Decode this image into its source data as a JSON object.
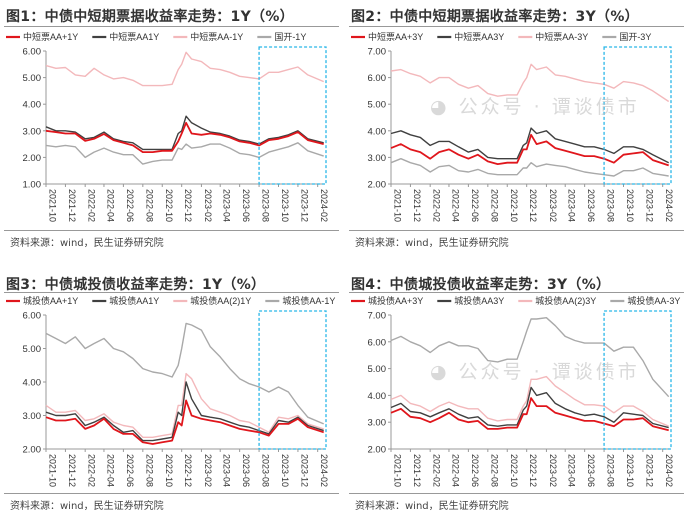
{
  "watermark": "公众号 · 谭谈债市",
  "colors": {
    "red": "#e0161c",
    "dark": "#404040",
    "pink": "#f3b8bb",
    "gray": "#a9a9a9",
    "highlight": "#29b6e8"
  },
  "x_dates": [
    "2021-10-01",
    "2021-11-01",
    "2021-12-01",
    "2022-01-01",
    "2022-02-01",
    "2022-03-01",
    "2022-04-01",
    "2022-05-01",
    "2022-06-01",
    "2022-07-01",
    "2022-08-01",
    "2022-09-01",
    "2022-10-01",
    "2022-11-01",
    "2022-11-20",
    "2022-12-01",
    "2022-12-15",
    "2023-01-01",
    "2023-02-01",
    "2023-03-01",
    "2023-04-01",
    "2023-05-01",
    "2023-06-01",
    "2023-07-01",
    "2023-08-01",
    "2023-09-01",
    "2023-10-01",
    "2023-11-01",
    "2023-12-01",
    "2024-01-01",
    "2024-02-20"
  ],
  "chart_data": [
    {
      "type": "line",
      "title": "图1：中债中短期票据收益率走势：1Y（%）",
      "source": "资料来源：wind，民生证券研究院",
      "ylim": [
        1,
        6
      ],
      "yticks": [
        "1.00",
        "2.00",
        "3.00",
        "4.00",
        "5.00",
        "6.00"
      ],
      "xticks": [
        "2021-10",
        "2021-12",
        "2022-02",
        "2022-04",
        "2022-06",
        "2022-08",
        "2022-10",
        "2022-12",
        "2023-02",
        "2023-04",
        "2023-06",
        "2023-08",
        "2023-10",
        "2023-12",
        "2024-02"
      ],
      "highlight_from": "2023-08",
      "grid": false,
      "legend": "top",
      "series": [
        {
          "name": "中短票AA+1Y",
          "color": "red",
          "values": [
            3.0,
            2.95,
            2.9,
            2.9,
            2.62,
            2.7,
            2.88,
            2.65,
            2.55,
            2.45,
            2.2,
            2.2,
            2.25,
            2.25,
            2.6,
            2.9,
            3.3,
            2.9,
            2.85,
            2.9,
            2.85,
            2.75,
            2.6,
            2.55,
            2.45,
            2.65,
            2.7,
            2.8,
            2.95,
            2.65,
            2.5
          ]
        },
        {
          "name": "中短票AA1Y",
          "color": "dark",
          "values": [
            3.15,
            3.0,
            3.0,
            2.95,
            2.7,
            2.75,
            2.95,
            2.7,
            2.6,
            2.55,
            2.3,
            2.3,
            2.3,
            2.3,
            2.9,
            3.0,
            3.55,
            3.3,
            3.1,
            2.95,
            2.9,
            2.8,
            2.65,
            2.6,
            2.5,
            2.7,
            2.75,
            2.85,
            3.0,
            2.7,
            2.55
          ]
        },
        {
          "name": "中短票AA-1Y",
          "color": "pink",
          "values": [
            5.45,
            5.35,
            5.38,
            5.1,
            5.05,
            5.35,
            5.1,
            4.95,
            5.0,
            4.9,
            4.7,
            4.7,
            4.7,
            4.75,
            5.3,
            5.5,
            5.95,
            5.7,
            5.6,
            5.35,
            5.3,
            5.2,
            5.05,
            5.0,
            4.95,
            5.2,
            5.2,
            5.3,
            5.4,
            5.1,
            4.85
          ]
        },
        {
          "name": "国开-1Y",
          "color": "gray",
          "values": [
            2.45,
            2.4,
            2.45,
            2.4,
            2.0,
            2.2,
            2.35,
            2.2,
            2.1,
            2.1,
            1.75,
            1.85,
            1.9,
            1.9,
            2.35,
            2.3,
            2.5,
            2.35,
            2.4,
            2.5,
            2.5,
            2.35,
            2.15,
            2.1,
            2.0,
            2.2,
            2.3,
            2.4,
            2.55,
            2.25,
            2.05
          ]
        }
      ]
    },
    {
      "type": "line",
      "title": "图2：中债中短期票据收益率走势：3Y（%）",
      "source": "资料来源：wind，民生证券研究院",
      "ylim": [
        2,
        7
      ],
      "yticks": [
        "2.00",
        "3.00",
        "4.00",
        "5.00",
        "6.00",
        "7.00"
      ],
      "xticks": [
        "2021-10",
        "2021-12",
        "2022-02",
        "2022-04",
        "2022-06",
        "2022-08",
        "2022-10",
        "2022-12",
        "2023-02",
        "2023-04",
        "2023-06",
        "2023-08",
        "2023-10",
        "2023-12",
        "2024-02"
      ],
      "highlight_from": "2023-08",
      "grid": false,
      "legend": "top",
      "series": [
        {
          "name": "中短票AA+3Y",
          "color": "red",
          "values": [
            3.35,
            3.5,
            3.3,
            3.2,
            2.95,
            3.2,
            3.3,
            3.1,
            2.95,
            3.1,
            2.85,
            2.75,
            2.8,
            2.8,
            3.3,
            3.3,
            3.85,
            3.5,
            3.6,
            3.35,
            3.25,
            3.15,
            3.05,
            3.05,
            2.95,
            2.8,
            3.1,
            3.15,
            3.2,
            2.9,
            2.7
          ]
        },
        {
          "name": "中短票AA3Y",
          "color": "dark",
          "values": [
            3.9,
            4.0,
            3.85,
            3.75,
            3.45,
            3.6,
            3.6,
            3.4,
            3.2,
            3.3,
            3.0,
            2.95,
            2.95,
            2.95,
            3.45,
            3.55,
            4.1,
            3.9,
            4.0,
            3.7,
            3.6,
            3.5,
            3.4,
            3.4,
            3.3,
            3.15,
            3.4,
            3.4,
            3.3,
            3.1,
            2.8
          ]
        },
        {
          "name": "中短票AA-3Y",
          "color": "pink",
          "values": [
            6.25,
            6.3,
            6.15,
            6.05,
            5.8,
            6.0,
            6.0,
            5.75,
            5.6,
            5.7,
            5.4,
            5.3,
            5.35,
            5.35,
            5.8,
            6.0,
            6.5,
            6.3,
            6.4,
            6.1,
            6.05,
            5.95,
            5.85,
            5.8,
            5.75,
            5.6,
            5.85,
            5.8,
            5.7,
            5.5,
            5.1
          ]
        },
        {
          "name": "国开-3Y",
          "color": "gray",
          "values": [
            2.8,
            2.95,
            2.8,
            2.7,
            2.45,
            2.65,
            2.7,
            2.5,
            2.45,
            2.55,
            2.4,
            2.35,
            2.35,
            2.35,
            2.6,
            2.6,
            2.8,
            2.65,
            2.75,
            2.7,
            2.65,
            2.55,
            2.45,
            2.4,
            2.35,
            2.3,
            2.5,
            2.5,
            2.6,
            2.4,
            2.3
          ]
        }
      ]
    },
    {
      "type": "line",
      "title": "图3：中债城投债收益率走势：1Y（%）",
      "source": "资料来源：wind，民生证券研究院",
      "ylim": [
        2,
        6
      ],
      "yticks": [
        "2.00",
        "3.00",
        "4.00",
        "5.00",
        "6.00"
      ],
      "xticks": [
        "2021-10",
        "2021-12",
        "2022-02",
        "2022-04",
        "2022-06",
        "2022-08",
        "2022-10",
        "2022-12",
        "2023-02",
        "2023-04",
        "2023-06",
        "2023-08",
        "2023-10",
        "2023-12",
        "2024-02"
      ],
      "highlight_from": "2023-08",
      "grid": false,
      "legend": "top",
      "series": [
        {
          "name": "城投债AA+1Y",
          "color": "red",
          "values": [
            2.95,
            2.85,
            2.85,
            2.9,
            2.6,
            2.7,
            2.9,
            2.6,
            2.45,
            2.45,
            2.2,
            2.15,
            2.2,
            2.25,
            2.8,
            2.7,
            3.45,
            3.0,
            2.9,
            2.85,
            2.8,
            2.7,
            2.6,
            2.55,
            2.5,
            2.4,
            2.75,
            2.75,
            2.9,
            2.65,
            2.5
          ]
        },
        {
          "name": "城投债AA1Y",
          "color": "dark",
          "values": [
            3.1,
            3.0,
            3.0,
            3.05,
            2.7,
            2.8,
            2.95,
            2.7,
            2.5,
            2.55,
            2.25,
            2.25,
            2.3,
            2.35,
            3.1,
            3.0,
            4.0,
            3.5,
            3.0,
            2.95,
            2.9,
            2.8,
            2.7,
            2.65,
            2.55,
            2.45,
            2.85,
            2.8,
            2.95,
            2.7,
            2.55
          ]
        },
        {
          "name": "城投债AA(2)1Y",
          "color": "pink",
          "values": [
            3.3,
            3.1,
            3.1,
            3.15,
            2.85,
            2.9,
            3.05,
            2.8,
            2.7,
            2.65,
            2.35,
            2.35,
            2.4,
            2.45,
            3.3,
            3.3,
            4.25,
            4.1,
            3.5,
            3.2,
            3.1,
            3.0,
            2.85,
            2.8,
            2.65,
            2.5,
            2.95,
            2.9,
            3.0,
            2.75,
            2.6
          ]
        },
        {
          "name": "城投债AA-1Y",
          "color": "gray",
          "values": [
            5.45,
            5.3,
            5.15,
            5.35,
            5.0,
            5.15,
            5.3,
            5.0,
            4.9,
            4.7,
            4.4,
            4.3,
            4.25,
            4.15,
            4.5,
            5.0,
            5.75,
            5.7,
            5.55,
            5.05,
            4.75,
            4.4,
            4.1,
            3.95,
            3.85,
            3.7,
            3.85,
            3.7,
            3.3,
            2.95,
            2.75
          ]
        }
      ]
    },
    {
      "type": "line",
      "title": "图4：中债城投债收益率走势：3Y（%）",
      "source": "资料来源：wind，民生证券研究院",
      "ylim": [
        2,
        7
      ],
      "yticks": [
        "2.00",
        "3.00",
        "4.00",
        "5.00",
        "6.00",
        "7.00"
      ],
      "xticks": [
        "2021-10",
        "2021-12",
        "2022-02",
        "2022-04",
        "2022-06",
        "2022-08",
        "2022-10",
        "2022-12",
        "2023-02",
        "2023-04",
        "2023-06",
        "2023-08",
        "2023-10",
        "2023-12",
        "2024-02"
      ],
      "highlight_from": "2023-08",
      "grid": false,
      "legend": "top",
      "series": [
        {
          "name": "城投债AA+3Y",
          "color": "red",
          "values": [
            3.35,
            3.5,
            3.2,
            3.15,
            3.0,
            3.15,
            3.35,
            3.1,
            3.0,
            3.05,
            2.75,
            2.75,
            2.8,
            2.8,
            3.3,
            3.3,
            3.9,
            3.6,
            3.6,
            3.35,
            3.25,
            3.15,
            3.05,
            3.05,
            2.95,
            2.85,
            3.1,
            3.1,
            3.15,
            2.85,
            2.7
          ]
        },
        {
          "name": "城投债AA3Y",
          "color": "dark",
          "values": [
            3.55,
            3.7,
            3.4,
            3.35,
            3.2,
            3.35,
            3.5,
            3.3,
            3.15,
            3.2,
            2.9,
            2.85,
            2.9,
            2.9,
            3.45,
            3.6,
            4.3,
            4.0,
            4.1,
            3.7,
            3.5,
            3.35,
            3.25,
            3.3,
            3.2,
            3.0,
            3.35,
            3.3,
            3.25,
            2.95,
            2.8
          ]
        },
        {
          "name": "城投债AA(2)3Y",
          "color": "pink",
          "values": [
            3.85,
            4.0,
            3.7,
            3.6,
            3.4,
            3.6,
            3.75,
            3.6,
            3.5,
            3.5,
            3.15,
            3.05,
            3.1,
            3.1,
            3.6,
            3.8,
            4.6,
            4.6,
            4.7,
            4.35,
            4.1,
            3.85,
            3.65,
            3.65,
            3.6,
            3.35,
            3.6,
            3.6,
            3.4,
            3.1,
            2.85
          ]
        },
        {
          "name": "城投债AA-3Y",
          "color": "gray",
          "values": [
            6.05,
            6.2,
            6.0,
            5.85,
            5.6,
            5.85,
            6.0,
            5.85,
            5.85,
            5.75,
            5.3,
            5.25,
            5.35,
            5.35,
            6.0,
            6.4,
            6.85,
            6.85,
            6.9,
            6.6,
            6.2,
            6.05,
            5.95,
            5.95,
            5.95,
            5.65,
            5.8,
            5.8,
            5.3,
            4.6,
            3.95
          ]
        }
      ]
    }
  ]
}
